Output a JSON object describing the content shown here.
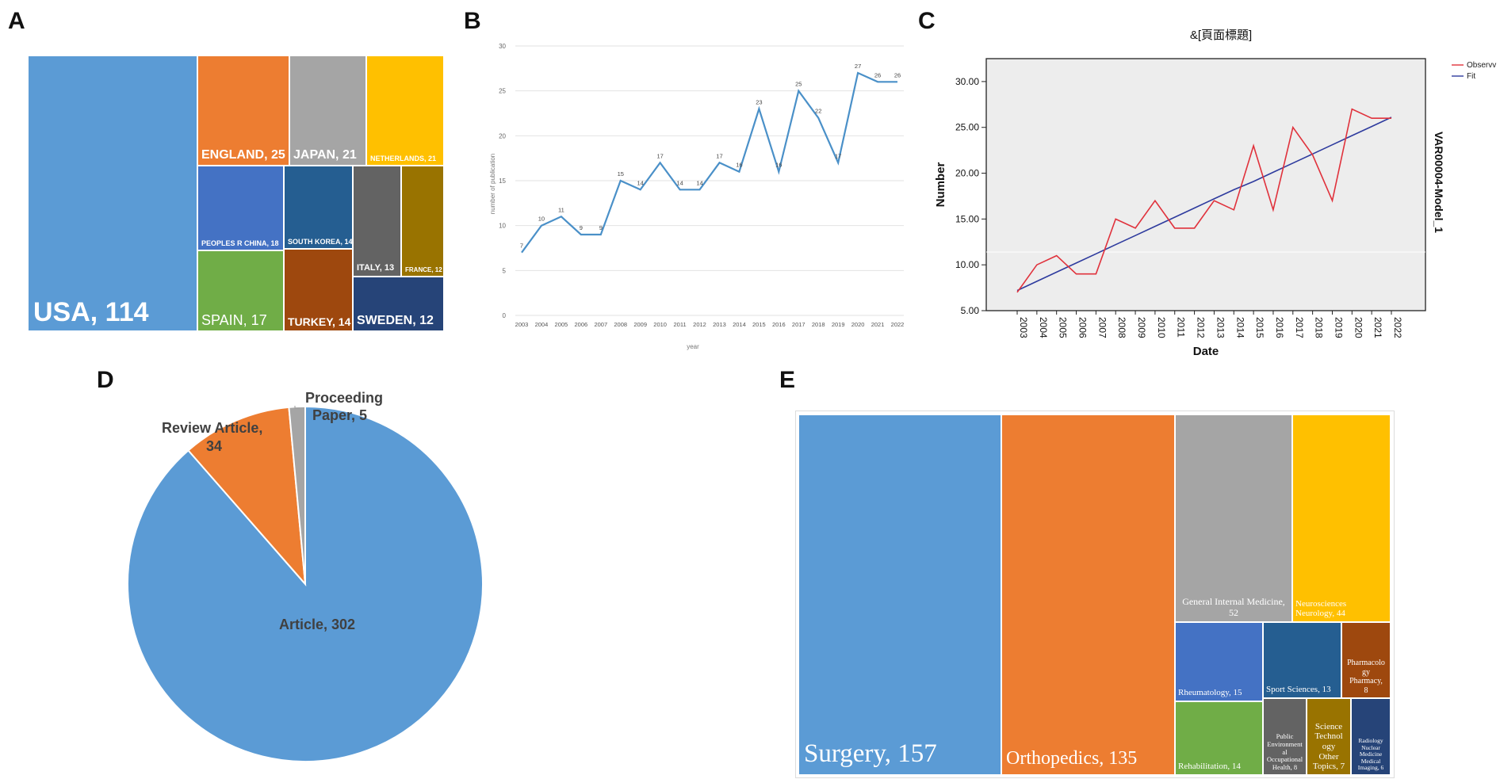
{
  "panels": {
    "a": "A",
    "b": "B",
    "c": "C",
    "d": "D",
    "e": "E"
  },
  "chart_data": [
    {
      "id": "A",
      "type": "treemap",
      "title": "",
      "items": [
        {
          "label": "USA, 114",
          "value": 114,
          "color": "#5B9BD5"
        },
        {
          "label": "ENGLAND, 25",
          "value": 25,
          "color": "#ED7D31"
        },
        {
          "label": "JAPAN, 21",
          "value": 21,
          "color": "#A5A5A5"
        },
        {
          "label": "NETHERLANDS, 21",
          "value": 21,
          "color": "#FFC000"
        },
        {
          "label": "PEOPLES R CHINA, 18",
          "value": 18,
          "color": "#4472C4"
        },
        {
          "label": "SOUTH KOREA, 14",
          "value": 14,
          "color": "#255E91"
        },
        {
          "label": "ITALY, 13",
          "value": 13,
          "color": "#636363"
        },
        {
          "label": "FRANCE, 12",
          "value": 12,
          "color": "#997300"
        },
        {
          "label": "SPAIN, 17",
          "value": 17,
          "color": "#70AD47"
        },
        {
          "label": "TURKEY, 14",
          "value": 14,
          "color": "#9E480E"
        },
        {
          "label": "SWEDEN, 12",
          "value": 12,
          "color": "#264478"
        }
      ]
    },
    {
      "id": "B",
      "type": "line",
      "x": [
        "2003",
        "2004",
        "2005",
        "2006",
        "2007",
        "2008",
        "2009",
        "2010",
        "2011",
        "2012",
        "2013",
        "2014",
        "2015",
        "2016",
        "2017",
        "2018",
        "2019",
        "2020",
        "2021",
        "2022"
      ],
      "values": [
        7,
        10,
        11,
        9,
        9,
        15,
        14,
        17,
        14,
        14,
        17,
        16,
        23,
        16,
        25,
        22,
        17,
        27,
        26,
        26
      ],
      "xlabel": "year",
      "ylabel": "number of publication",
      "ylim": [
        0,
        30
      ],
      "yticks": [
        "0",
        "5",
        "10",
        "15",
        "20",
        "25",
        "30"
      ],
      "color": "#4A90C8",
      "grid": true
    },
    {
      "id": "C",
      "type": "line",
      "title": "&[頁面標題]",
      "x": [
        "2003",
        "2004",
        "2005",
        "2006",
        "2007",
        "2008",
        "2009",
        "2010",
        "2011",
        "2012",
        "2013",
        "2014",
        "2015",
        "2016",
        "2017",
        "2018",
        "2019",
        "2020",
        "2021",
        "2022"
      ],
      "series": [
        {
          "name": "Observed",
          "values": [
            7,
            10,
            11,
            9,
            9,
            15,
            14,
            17,
            14,
            14,
            17,
            16,
            23,
            16,
            25,
            22,
            17,
            27,
            26,
            26
          ],
          "color": "#E0323C"
        },
        {
          "name": "Fit",
          "values": [
            7.2,
            8.2,
            9.2,
            10.2,
            11.2,
            12.2,
            13.2,
            14.2,
            15.2,
            16.2,
            17.2,
            18.2,
            19.1,
            20.1,
            21.1,
            22.1,
            23.1,
            24.1,
            25.1,
            26.1
          ],
          "color": "#2E3B9E"
        }
      ],
      "legend_labels": [
        "Observv",
        "Fit"
      ],
      "xlabel": "Date",
      "ylabel": "Number",
      "right_label": "VAR00004-Model_1",
      "ylim": [
        5,
        32.5
      ],
      "yticks": [
        "5.00",
        "10.00",
        "15.00",
        "20.00",
        "25.00",
        "30.00"
      ]
    },
    {
      "id": "D",
      "type": "pie",
      "slices": [
        {
          "label_line1": "Article, 302",
          "label_line2": "",
          "value": 302,
          "color": "#5B9BD5"
        },
        {
          "label_line1": "Review Article,",
          "label_line2": "34",
          "value": 34,
          "color": "#ED7D31"
        },
        {
          "label_line1": "Proceeding",
          "label_line2": "Paper, 5",
          "value": 5,
          "color": "#A5A5A5"
        }
      ]
    },
    {
      "id": "E",
      "type": "treemap",
      "items": [
        {
          "lines": [
            "Surgery, 157"
          ],
          "value": 157,
          "color": "#5B9BD5"
        },
        {
          "lines": [
            "Orthopedics, 135"
          ],
          "value": 135,
          "color": "#ED7D31"
        },
        {
          "lines": [
            "General Internal Medicine,",
            "52"
          ],
          "value": 52,
          "color": "#A5A5A5"
        },
        {
          "lines": [
            "Neurosciences",
            "Neurology, 44"
          ],
          "value": 44,
          "color": "#FFC000"
        },
        {
          "lines": [
            "Rheumatology, 15"
          ],
          "value": 15,
          "color": "#4472C4"
        },
        {
          "lines": [
            "Sport Sciences, 13"
          ],
          "value": 13,
          "color": "#255E91"
        },
        {
          "lines": [
            "Pharmacolo",
            "gy",
            "Pharmacy,",
            "8"
          ],
          "value": 8,
          "color": "#9E480E"
        },
        {
          "lines": [
            "Rehabilitation, 14"
          ],
          "value": 14,
          "color": "#70AD47"
        },
        {
          "lines": [
            "Public",
            "Environment",
            "al",
            "Occupational",
            "Health, 8"
          ],
          "value": 8,
          "color": "#636363"
        },
        {
          "lines": [
            "Science",
            "Technol",
            "ogy",
            "Other",
            "Topics, 7"
          ],
          "value": 7,
          "color": "#997300"
        },
        {
          "lines": [
            "Radiology",
            "Nuclear",
            "Medicine",
            "Medical",
            "Imaging, 6"
          ],
          "value": 6,
          "color": "#264478"
        }
      ]
    }
  ]
}
